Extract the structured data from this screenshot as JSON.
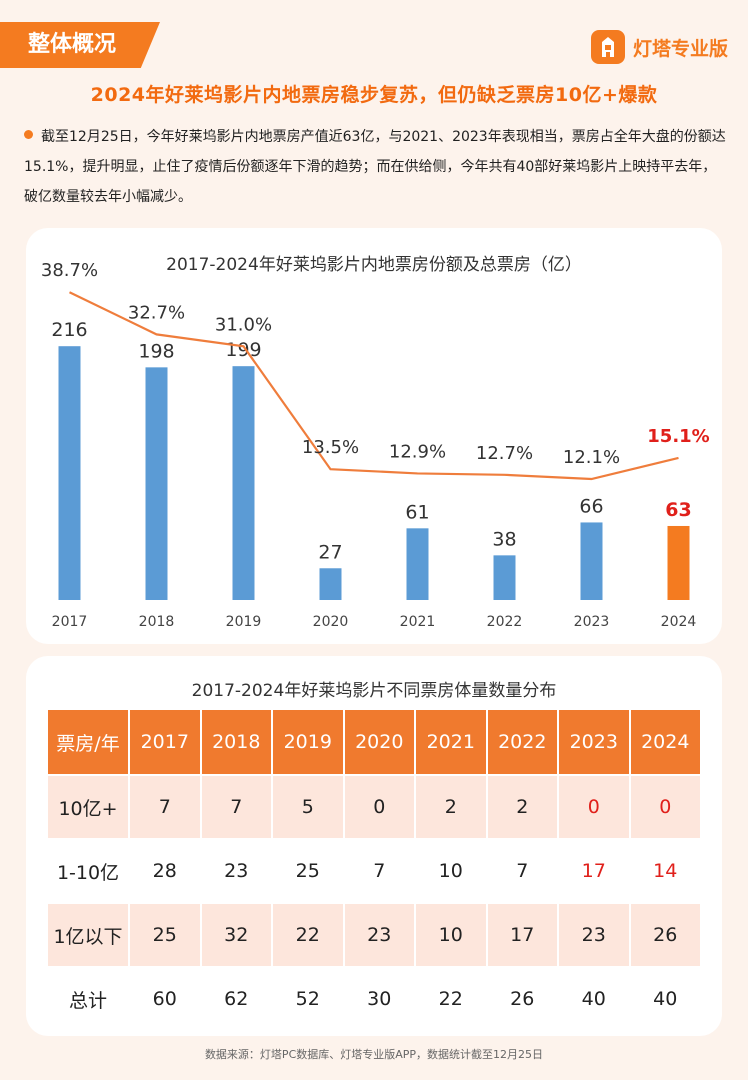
{
  "header": {
    "section_tag": "整体概况",
    "brand_name": "灯塔专业版",
    "brand_icon": "lighthouse-icon"
  },
  "headline": "2024年好莱坞影片内地票房稳步复苏，但仍缺乏票房10亿+爆款",
  "summary": "截至12月25日，今年好莱坞影片内地票房产值近63亿，与2021、2023年表现相当，票房占全年大盘的份额达15.1%，提升明显，止住了疫情后份额逐年下滑的趋势；而在供给侧，今年共有40部好莱坞影片上映持平去年，破亿数量较去年小幅减少。",
  "chart_data": [
    {
      "type": "bar",
      "title": "2017-2024年好莱坞影片内地票房份额及总票房（亿）",
      "categories": [
        "2017",
        "2018",
        "2019",
        "2020",
        "2021",
        "2022",
        "2023",
        "2024"
      ],
      "series": [
        {
          "values": [
            216,
            198,
            199,
            27,
            61,
            38,
            66,
            63
          ],
          "labels": [
            "216",
            "198",
            "199",
            "27",
            "61",
            "38",
            "66",
            "63"
          ],
          "color": "#5b9bd5",
          "highlight_color": "#f47b20",
          "highlight_index": 7
        },
        {
          "type": "line",
          "values": [
            38.7,
            32.7,
            31.0,
            13.5,
            12.9,
            12.7,
            12.1,
            15.1
          ],
          "labels": [
            "38.7%",
            "32.7%",
            "31.0%",
            "13.5%",
            "12.9%",
            "12.7%",
            "12.1%",
            "15.1%"
          ],
          "color": "#ef7d3c",
          "highlight_color": "#e0201b",
          "highlight_index": 7
        }
      ],
      "ylim": [
        0,
        240
      ],
      "line_ylim": [
        0,
        45
      ],
      "grid": false
    },
    {
      "type": "table",
      "title": "2017-2024年好莱坞影片不同票房体量数量分布",
      "header": [
        "票房/年",
        "2017",
        "2018",
        "2019",
        "2020",
        "2021",
        "2022",
        "2023",
        "2024"
      ],
      "rows": [
        {
          "label": "10亿+",
          "values": [
            "7",
            "7",
            "5",
            "0",
            "2",
            "2",
            "0",
            "0"
          ]
        },
        {
          "label": "1-10亿",
          "values": [
            "28",
            "23",
            "25",
            "7",
            "10",
            "7",
            "17",
            "14"
          ]
        },
        {
          "label": "1亿以下",
          "values": [
            "25",
            "32",
            "22",
            "23",
            "10",
            "17",
            "23",
            "26"
          ]
        },
        {
          "label": "总计",
          "values": [
            "60",
            "62",
            "52",
            "30",
            "22",
            "26",
            "40",
            "40"
          ]
        }
      ],
      "highlight_color": "#e0201b",
      "highlight_columns": [
        6,
        7
      ],
      "highlight_rows": [
        0,
        1
      ]
    }
  ],
  "footer": {
    "source": "数据来源：灯塔PC数据库、灯塔专业版APP，数据统计截至12月25日"
  }
}
